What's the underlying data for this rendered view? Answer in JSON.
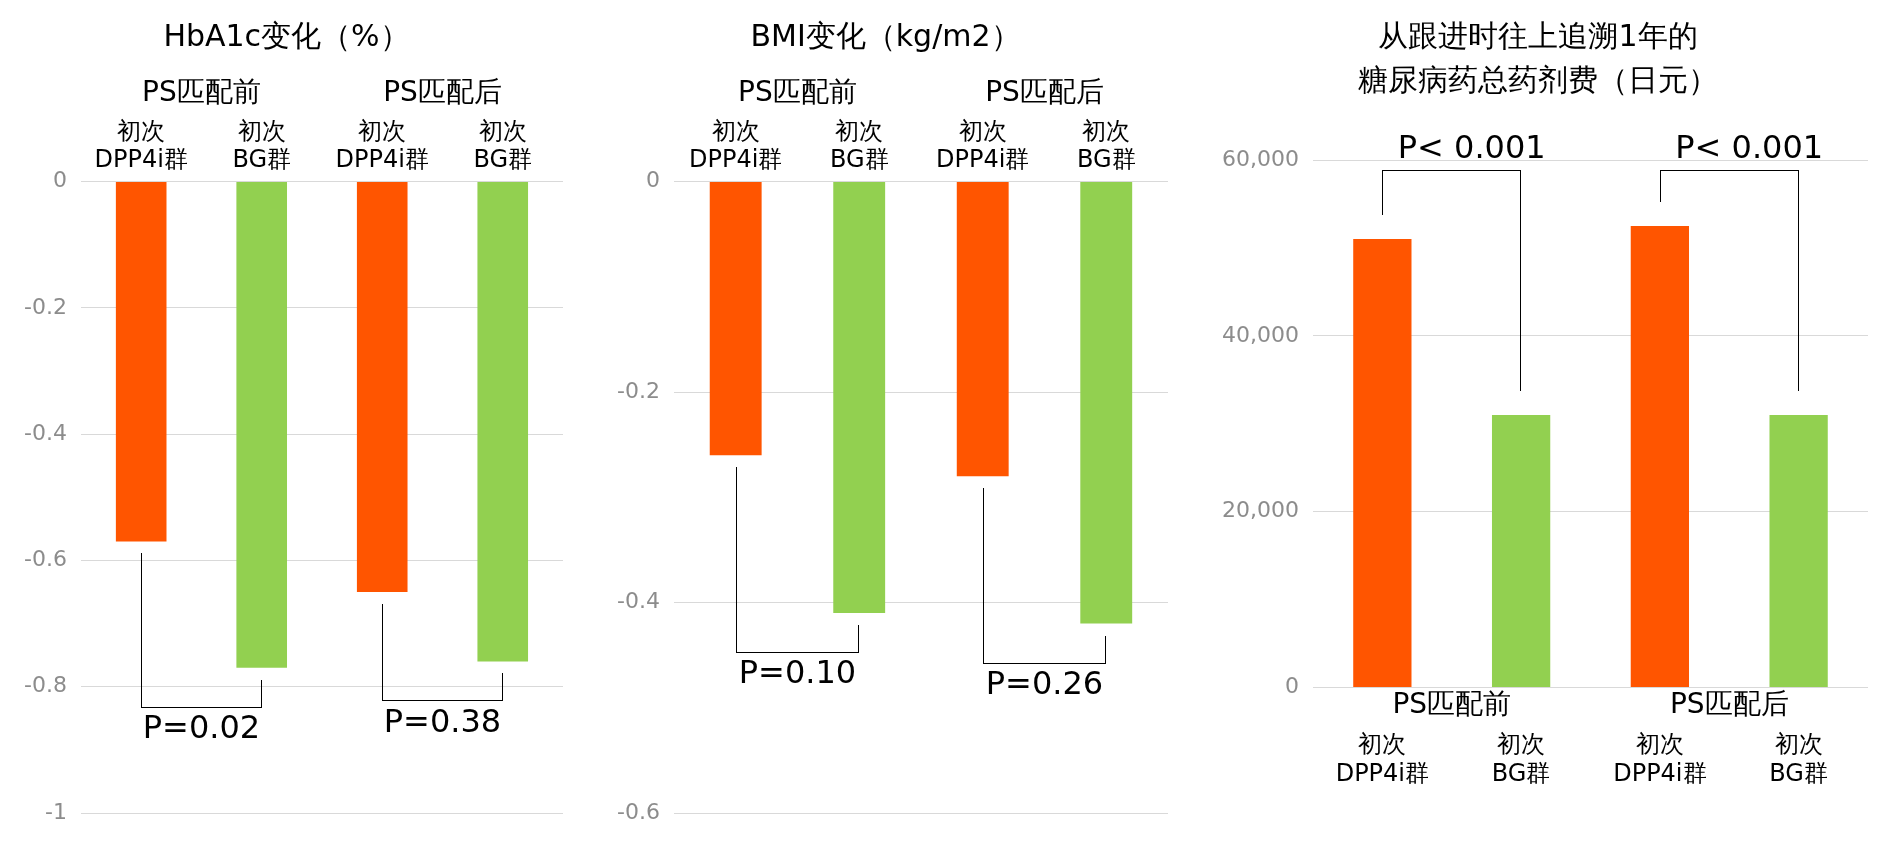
{
  "chart_data": [
    {
      "type": "bar",
      "title": "HbA1c变化（%）",
      "categories": [
        "初次 DPP4i群",
        "初次 BG群",
        "初次 DPP4i群",
        "初次 BG群"
      ],
      "values": [
        -0.57,
        -0.77,
        -0.65,
        -0.76
      ],
      "colors": [
        "#ff5500",
        "#92d050",
        "#ff5500",
        "#92d050"
      ],
      "ylim": [
        -1,
        0
      ],
      "yticks": [
        0,
        -0.2,
        -0.4,
        -0.6,
        -0.8,
        -1
      ],
      "grid": "y",
      "annotations": [
        "PS匹配前",
        "PS匹配后",
        "P=0.02",
        "P=0.38"
      ]
    },
    {
      "type": "bar",
      "title": "BMI变化（kg/m2）",
      "categories": [
        "初次 DPP4i群",
        "初次 BG群",
        "初次 DPP4i群",
        "初次 BG群"
      ],
      "values": [
        -0.26,
        -0.41,
        -0.28,
        -0.42
      ],
      "colors": [
        "#ff5500",
        "#92d050",
        "#ff5500",
        "#92d050"
      ],
      "ylim": [
        -0.6,
        0
      ],
      "yticks": [
        0,
        -0.2,
        -0.4,
        -0.6
      ],
      "grid": "y",
      "annotations": [
        "PS匹配前",
        "PS匹配后",
        "P=0.10",
        "P=0.26"
      ]
    },
    {
      "type": "bar",
      "title": "从跟进时往上追溯1年的",
      "subtitle": "糖尿病药总药剂费（日元）",
      "categories": [
        "初次 DPP4i群",
        "初次 BG群",
        "初次 DPP4i群",
        "初次 BG群"
      ],
      "values": [
        51000,
        31000,
        52500,
        31000
      ],
      "colors": [
        "#ff5500",
        "#92d050",
        "#ff5500",
        "#92d050"
      ],
      "ylim": [
        0,
        60000
      ],
      "yticks": [
        0,
        {
          "value": 20000,
          "label": "20,000"
        },
        {
          "value": 40000,
          "label": "40,000"
        },
        {
          "value": 60000,
          "label": "60,000"
        }
      ],
      "grid": "y",
      "annotations": [
        "PS匹配前",
        "PS匹配后",
        "P< 0.001",
        "P< 0.001"
      ]
    }
  ]
}
